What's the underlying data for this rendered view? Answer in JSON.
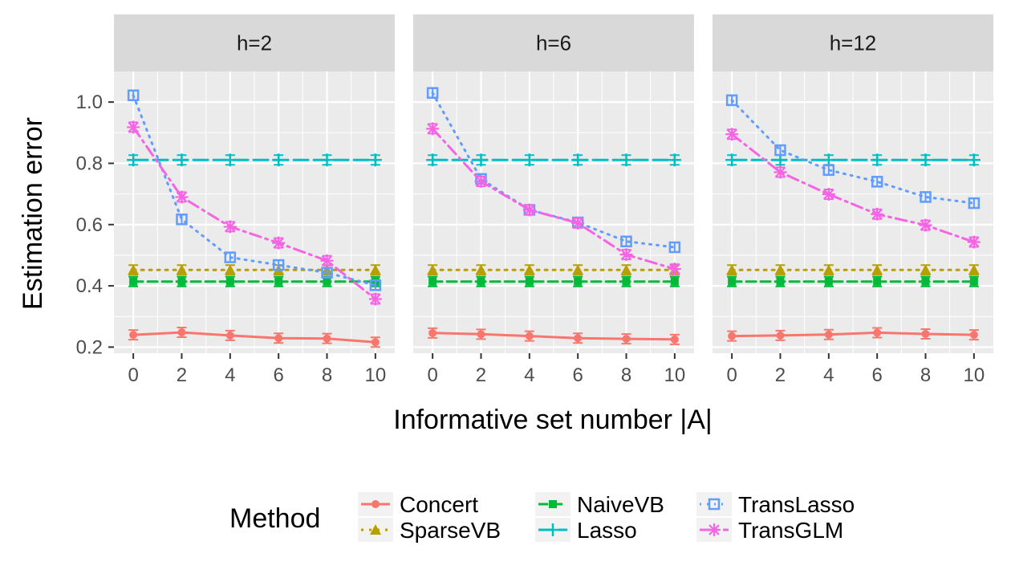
{
  "chart_data": {
    "type": "line",
    "xlabel": "Informative set number |A|",
    "ylabel": "Estimation error",
    "x": [
      0,
      2,
      4,
      6,
      8,
      10
    ],
    "xticks": [
      "0",
      "2",
      "4",
      "6",
      "8",
      "10"
    ],
    "yticks": [
      "0.2",
      "0.4",
      "0.6",
      "0.8",
      "1.0"
    ],
    "xlim": [
      -0.8,
      10.8
    ],
    "ylim": [
      0.18,
      1.1
    ],
    "grid": true,
    "legend": {
      "title": "Method",
      "position": "bottom",
      "entries": [
        "Concert",
        "SparseVB",
        "NaiveVB",
        "Lasso",
        "TransLasso",
        "TransGLM"
      ]
    },
    "methods": [
      {
        "name": "Concert",
        "color": "#F8766D",
        "dash": "solid",
        "marker": "circle"
      },
      {
        "name": "SparseVB",
        "color": "#B79F00",
        "dash": "dotted",
        "marker": "triangle"
      },
      {
        "name": "NaiveVB",
        "color": "#00BA38",
        "dash": "dashed",
        "marker": "square-filled"
      },
      {
        "name": "Lasso",
        "color": "#00BFC4",
        "dash": "longdash",
        "marker": "plus"
      },
      {
        "name": "TransLasso",
        "color": "#619CFF",
        "dash": "dotdot",
        "marker": "square-open"
      },
      {
        "name": "TransGLM",
        "color": "#F564E3",
        "dash": "dotdash",
        "marker": "asterisk"
      }
    ],
    "panels": [
      {
        "label": "h=2",
        "series": [
          {
            "name": "Concert",
            "values": [
              0.24,
              0.248,
              0.238,
              0.229,
              0.228,
              0.216
            ]
          },
          {
            "name": "SparseVB",
            "values": [
              0.452,
              0.452,
              0.452,
              0.452,
              0.452,
              0.452
            ]
          },
          {
            "name": "NaiveVB",
            "values": [
              0.414,
              0.414,
              0.414,
              0.414,
              0.414,
              0.414
            ]
          },
          {
            "name": "Lasso",
            "values": [
              0.811,
              0.811,
              0.811,
              0.811,
              0.811,
              0.811
            ]
          },
          {
            "name": "TransLasso",
            "values": [
              1.022,
              0.617,
              0.493,
              0.468,
              0.443,
              0.402
            ]
          },
          {
            "name": "TransGLM",
            "values": [
              0.918,
              0.69,
              0.593,
              0.54,
              0.482,
              0.357
            ]
          }
        ]
      },
      {
        "label": "h=6",
        "series": [
          {
            "name": "Concert",
            "values": [
              0.246,
              0.242,
              0.236,
              0.229,
              0.227,
              0.225
            ]
          },
          {
            "name": "SparseVB",
            "values": [
              0.452,
              0.452,
              0.452,
              0.452,
              0.452,
              0.452
            ]
          },
          {
            "name": "NaiveVB",
            "values": [
              0.414,
              0.414,
              0.414,
              0.414,
              0.414,
              0.414
            ]
          },
          {
            "name": "Lasso",
            "values": [
              0.811,
              0.811,
              0.811,
              0.811,
              0.811,
              0.811
            ]
          },
          {
            "name": "TransLasso",
            "values": [
              1.03,
              0.749,
              0.648,
              0.607,
              0.545,
              0.526
            ]
          },
          {
            "name": "TransGLM",
            "values": [
              0.913,
              0.741,
              0.648,
              0.605,
              0.502,
              0.455
            ]
          }
        ]
      },
      {
        "label": "h=12",
        "series": [
          {
            "name": "Concert",
            "values": [
              0.236,
              0.238,
              0.241,
              0.247,
              0.243,
              0.24
            ]
          },
          {
            "name": "SparseVB",
            "values": [
              0.452,
              0.452,
              0.452,
              0.452,
              0.452,
              0.452
            ]
          },
          {
            "name": "NaiveVB",
            "values": [
              0.414,
              0.414,
              0.414,
              0.414,
              0.414,
              0.414
            ]
          },
          {
            "name": "Lasso",
            "values": [
              0.811,
              0.811,
              0.811,
              0.811,
              0.811,
              0.811
            ]
          },
          {
            "name": "TransLasso",
            "values": [
              1.006,
              0.843,
              0.778,
              0.74,
              0.69,
              0.67
            ]
          },
          {
            "name": "TransGLM",
            "values": [
              0.895,
              0.771,
              0.699,
              0.634,
              0.598,
              0.543
            ]
          }
        ]
      }
    ]
  }
}
